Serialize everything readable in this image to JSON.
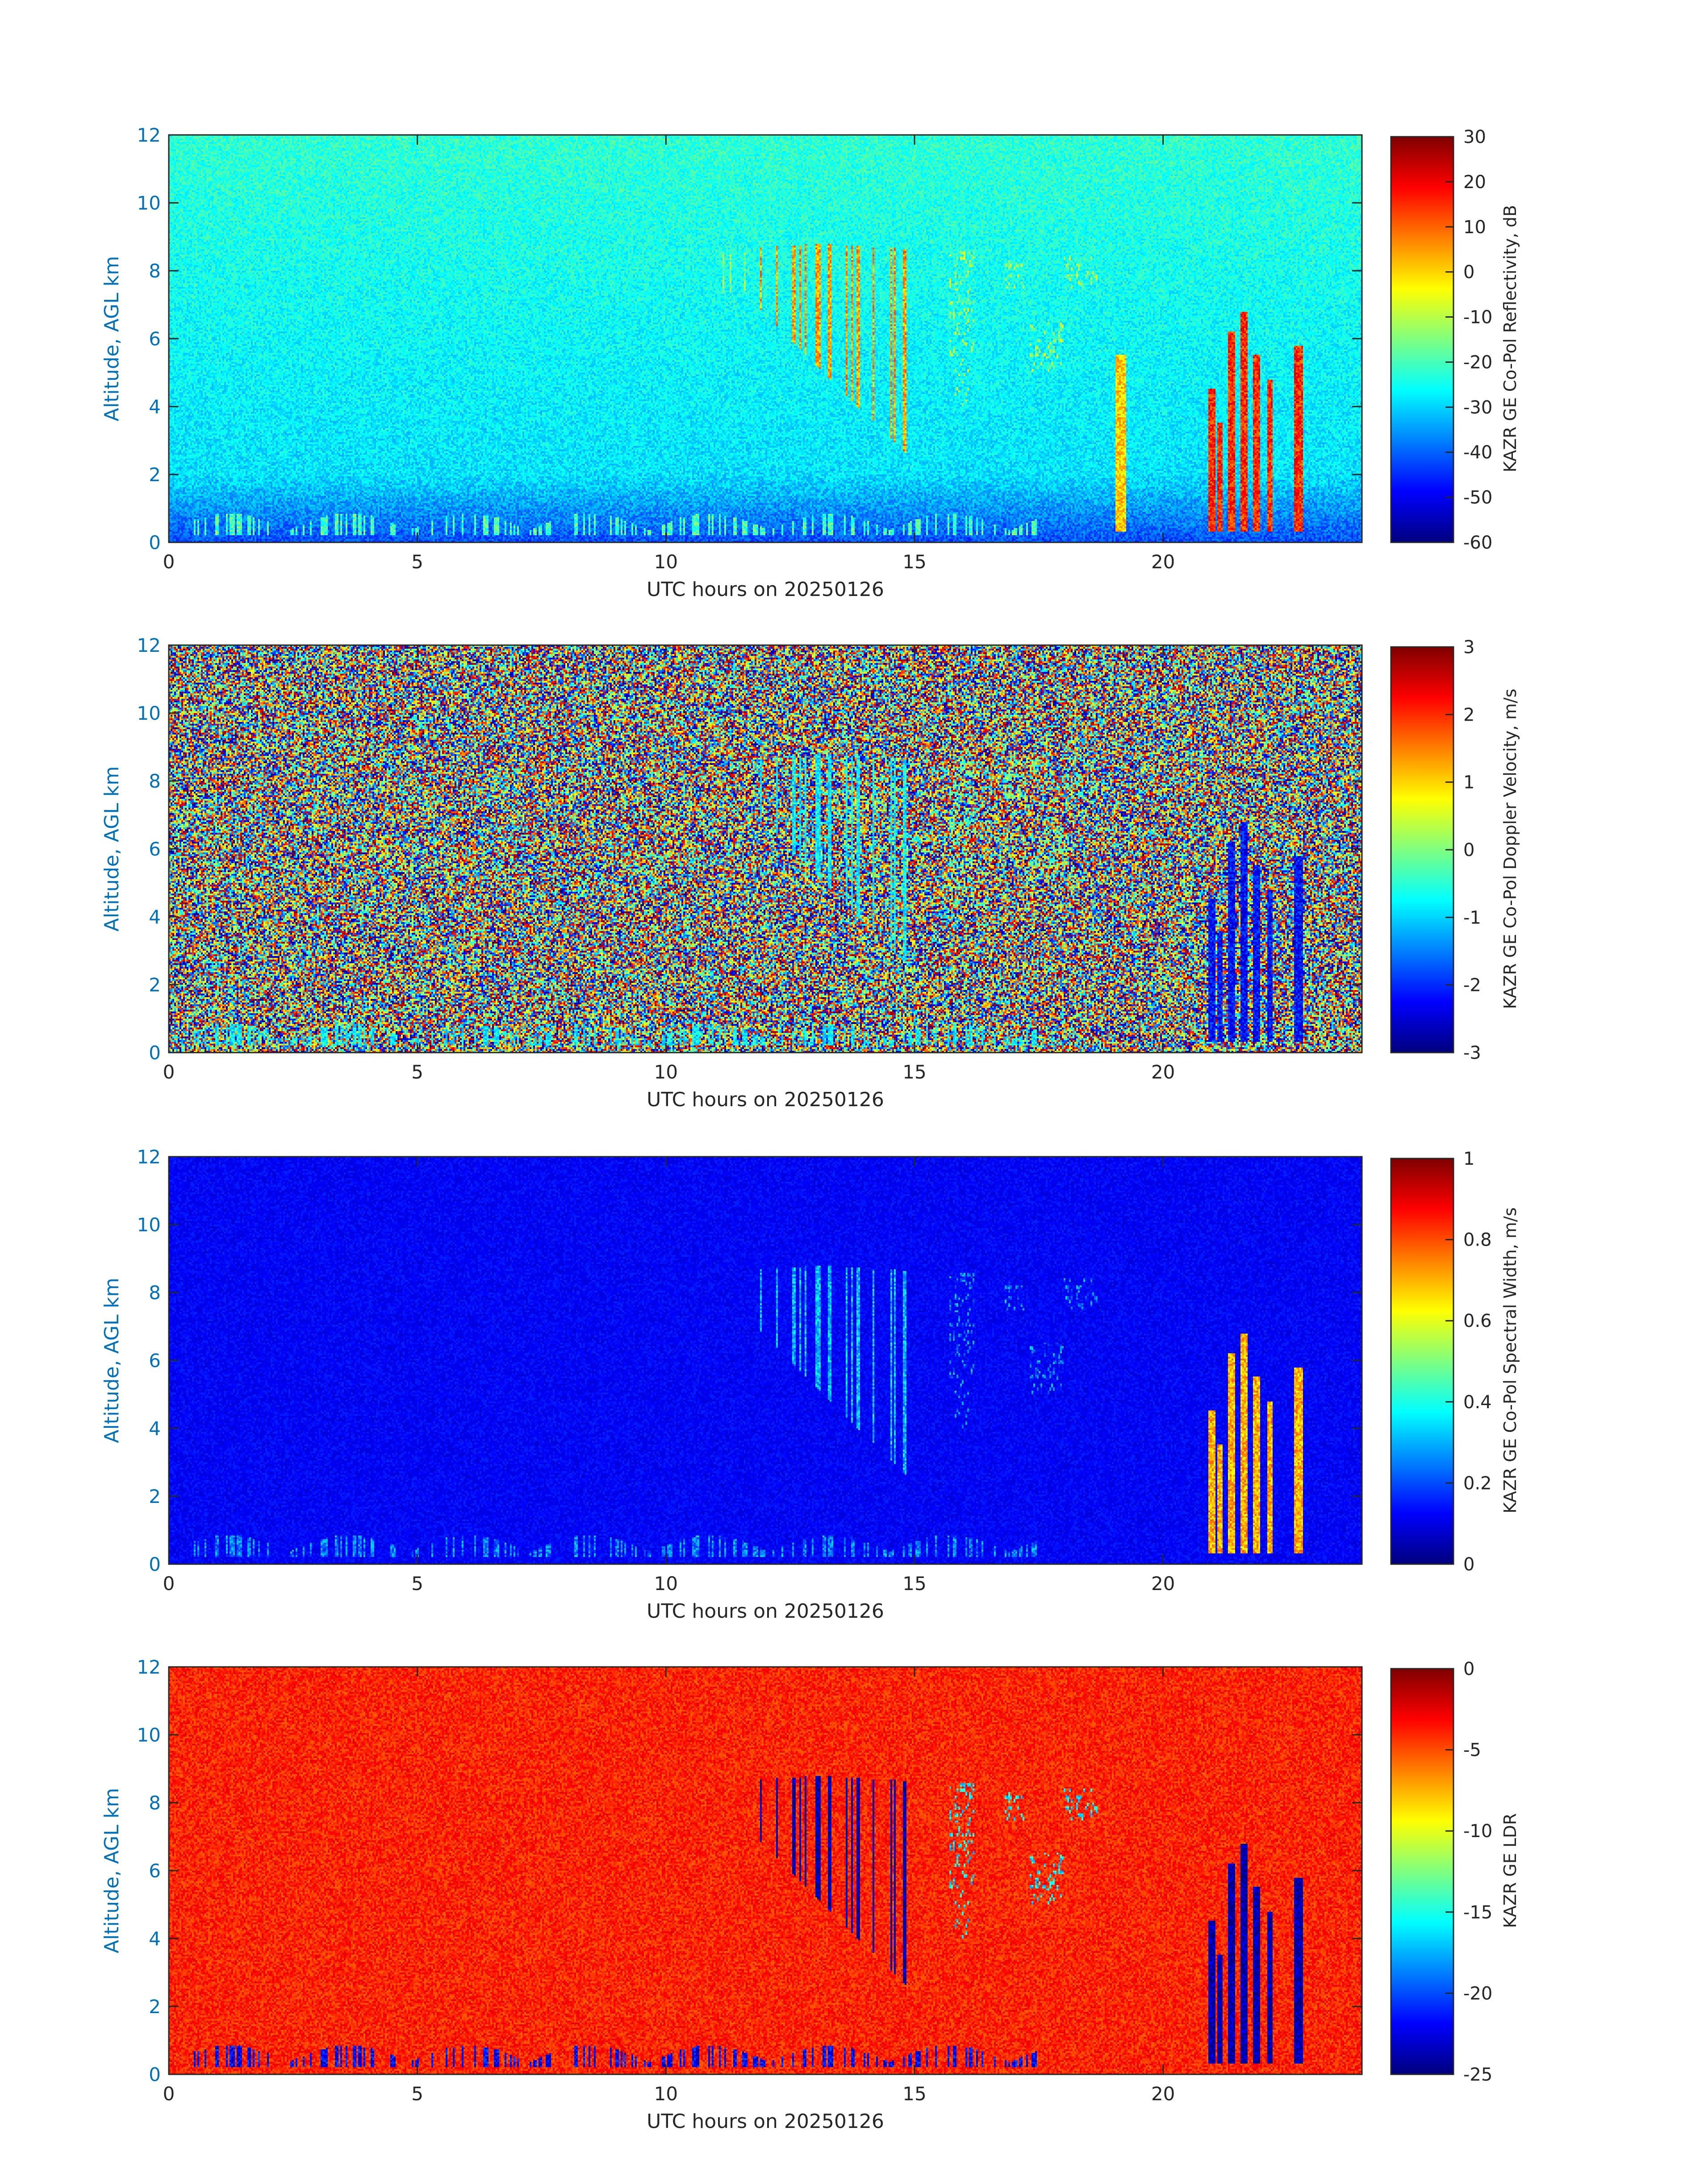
{
  "chart_data": [
    {
      "type": "heatmap",
      "title": "",
      "xlabel": "UTC hours on 20250126",
      "ylabel": "Altitude, AGL km",
      "xlim": [
        0,
        24
      ],
      "ylim": [
        0,
        12
      ],
      "xticks": [
        0,
        5,
        10,
        15,
        20
      ],
      "yticks": [
        0,
        2,
        4,
        6,
        8,
        10,
        12
      ],
      "colorbar": {
        "label": "KAZR GE Co-Pol Reflectivity, dB",
        "colormap": "jet",
        "range": [
          -60,
          30
        ],
        "ticks": [
          30,
          20,
          10,
          0,
          -10,
          -20,
          -30,
          -40,
          -50,
          -60
        ]
      },
      "background_value": -30,
      "features": [
        {
          "desc": "ice cloud",
          "x": [
            11.4,
            14.9
          ],
          "y": [
            2.5,
            8.8
          ],
          "value": 5
        },
        {
          "desc": "cloud streak",
          "x": [
            11.1,
            11.6
          ],
          "y": [
            7.0,
            8.5
          ],
          "value": -15
        },
        {
          "desc": "cloud fragments",
          "x": [
            15.5,
            18.8
          ],
          "y": [
            4.0,
            8.6
          ],
          "value": -12
        },
        {
          "desc": "fall streak",
          "x": [
            19.05,
            19.25
          ],
          "y": [
            0.3,
            5.5
          ],
          "value": 0
        },
        {
          "desc": "convective cells",
          "x": [
            20.8,
            22.9
          ],
          "y": [
            0.3,
            6.8
          ],
          "value": 15
        },
        {
          "desc": "low cloud layer",
          "x": [
            0.5,
            17.5
          ],
          "y": [
            0.2,
            1.1
          ],
          "value": -20
        }
      ]
    },
    {
      "type": "heatmap",
      "title": "",
      "xlabel": "UTC hours on 20250126",
      "ylabel": "Altitude, AGL km",
      "xlim": [
        0,
        24
      ],
      "ylim": [
        0,
        12
      ],
      "xticks": [
        0,
        5,
        10,
        15,
        20
      ],
      "yticks": [
        0,
        2,
        4,
        6,
        8,
        10,
        12
      ],
      "colorbar": {
        "label": "KAZR GE Co-Pol Doppler Velocity, m/s",
        "colormap": "jet",
        "range": [
          -3,
          3
        ],
        "ticks": [
          3,
          2,
          1,
          0,
          -1,
          -2,
          -3
        ]
      },
      "background_value": "noise",
      "features": [
        {
          "desc": "ice cloud",
          "x": [
            11.4,
            14.9
          ],
          "y": [
            2.5,
            8.8
          ],
          "value": -0.8
        },
        {
          "desc": "cloud fragments",
          "x": [
            15.5,
            18.8
          ],
          "y": [
            4.0,
            8.6
          ],
          "value": -0.3
        },
        {
          "desc": "convective cells",
          "x": [
            20.8,
            22.9
          ],
          "y": [
            0.3,
            6.8
          ],
          "value": -2.2
        },
        {
          "desc": "low cloud layer",
          "x": [
            0.5,
            17.5
          ],
          "y": [
            0.2,
            1.1
          ],
          "value": -0.8
        }
      ]
    },
    {
      "type": "heatmap",
      "title": "",
      "xlabel": "UTC hours on 20250126",
      "ylabel": "Altitude, AGL km",
      "xlim": [
        0,
        24
      ],
      "ylim": [
        0,
        12
      ],
      "xticks": [
        0,
        5,
        10,
        15,
        20
      ],
      "yticks": [
        0,
        2,
        4,
        6,
        8,
        10,
        12
      ],
      "colorbar": {
        "label": "KAZR GE Co-Pol Spectral Width, m/s",
        "colormap": "jet",
        "range": [
          0,
          1
        ],
        "ticks": [
          1,
          0.8,
          0.6,
          0.4,
          0.2,
          0
        ]
      },
      "background_value": 0.12,
      "features": [
        {
          "desc": "ice cloud",
          "x": [
            11.4,
            14.9
          ],
          "y": [
            2.5,
            8.8
          ],
          "value": 0.3
        },
        {
          "desc": "cloud fragments",
          "x": [
            15.5,
            18.8
          ],
          "y": [
            4.0,
            8.6
          ],
          "value": 0.25
        },
        {
          "desc": "convective cells",
          "x": [
            20.8,
            22.9
          ],
          "y": [
            0.3,
            6.8
          ],
          "value": 0.7
        },
        {
          "desc": "low cloud layer",
          "x": [
            0.5,
            17.5
          ],
          "y": [
            0.2,
            1.1
          ],
          "value": 0.25
        }
      ]
    },
    {
      "type": "heatmap",
      "title": "",
      "xlabel": "UTC hours on 20250126",
      "ylabel": "Altitude, AGL km",
      "xlim": [
        0,
        24
      ],
      "ylim": [
        0,
        12
      ],
      "xticks": [
        0,
        5,
        10,
        15,
        20
      ],
      "yticks": [
        0,
        2,
        4,
        6,
        8,
        10,
        12
      ],
      "colorbar": {
        "label": "KAZR GE LDR",
        "colormap": "jet",
        "range": [
          -25,
          0
        ],
        "ticks": [
          0,
          -5,
          -10,
          -15,
          -20,
          -25
        ]
      },
      "background_value": -4,
      "features": [
        {
          "desc": "ice cloud",
          "x": [
            11.4,
            14.9
          ],
          "y": [
            2.5,
            8.8
          ],
          "value": -24
        },
        {
          "desc": "cloud fragments",
          "x": [
            15.5,
            18.8
          ],
          "y": [
            4.0,
            8.6
          ],
          "value": -16
        },
        {
          "desc": "convective cells",
          "x": [
            20.8,
            22.9
          ],
          "y": [
            0.3,
            6.8
          ],
          "value": -24
        },
        {
          "desc": "low cloud layer",
          "x": [
            0.5,
            17.5
          ],
          "y": [
            0.2,
            1.1
          ],
          "value": -22
        }
      ]
    }
  ],
  "colors": {
    "axis_label_blue": "#0072BD",
    "axis_black": "#262626"
  }
}
